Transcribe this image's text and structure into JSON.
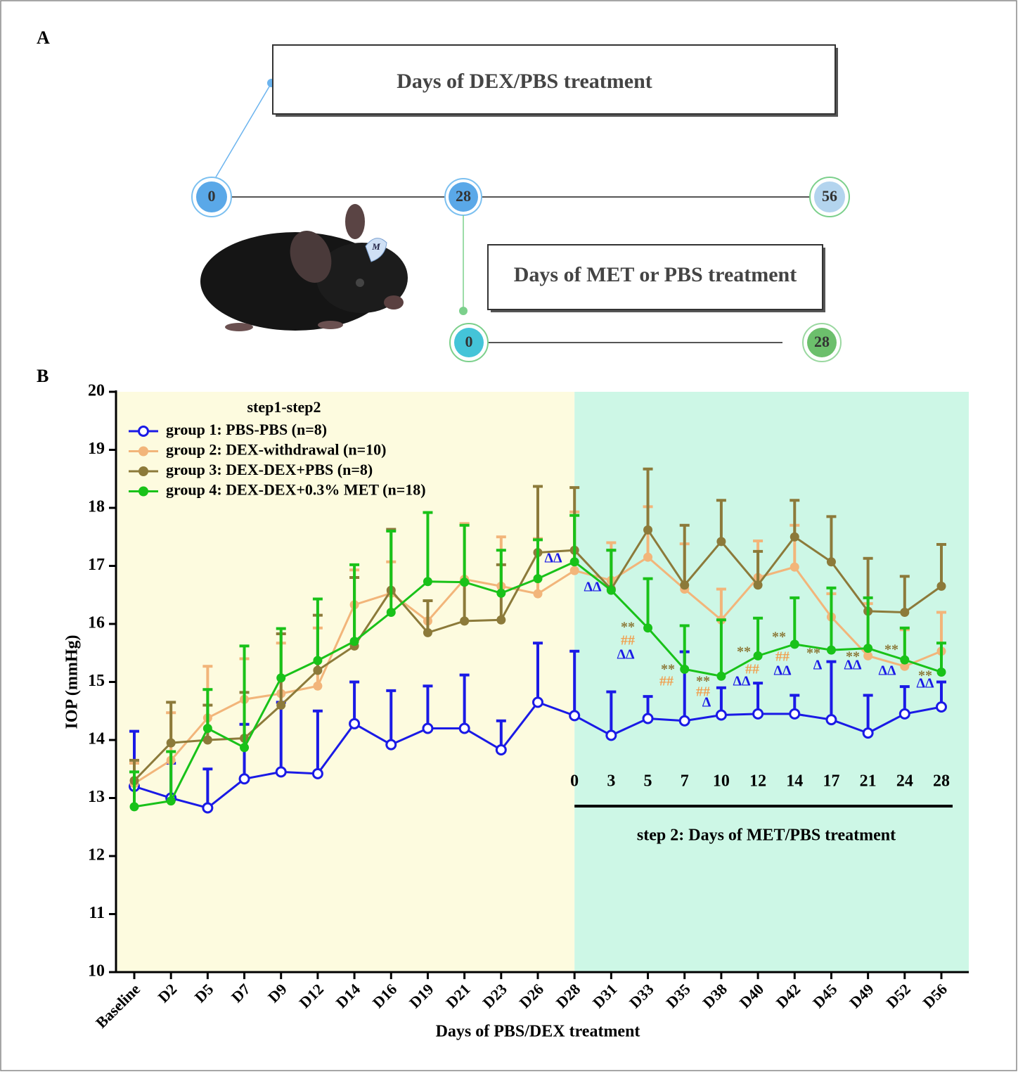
{
  "panel_a": {
    "label": "A",
    "box_1": "Days of DEX/PBS treatment",
    "box_2": "Days of MET or PBS treatment",
    "timeline_1": [
      0,
      28,
      56
    ],
    "timeline_2": [
      0,
      28
    ],
    "mouse_tag": "M"
  },
  "chart_data": {
    "type": "line",
    "panel_label": "B",
    "x_label": "Days of PBS/DEX treatment",
    "y_label": "IOP (mmHg)",
    "legend_title": "step1-step2",
    "categories": [
      "Baseline",
      "D2",
      "D5",
      "D7",
      "D9",
      "D12",
      "D14",
      "D16",
      "D19",
      "D21",
      "D23",
      "D26",
      "D28",
      "D31",
      "D33",
      "D35",
      "D38",
      "D40",
      "D42",
      "D45",
      "D49",
      "D52",
      "D56"
    ],
    "ylim": [
      10,
      20
    ],
    "yticks": [
      10,
      11,
      12,
      13,
      14,
      15,
      16,
      17,
      18,
      19,
      20
    ],
    "phase_colors": [
      "#fdfbdf",
      "#cdf7e6"
    ],
    "series": [
      {
        "name": "group 1: PBS-PBS (n=8)",
        "color": "#1a1ae6",
        "marker": "open",
        "values": [
          13.2,
          13.0,
          12.83,
          13.33,
          13.45,
          13.42,
          14.28,
          13.92,
          14.2,
          14.2,
          13.83,
          14.65,
          14.42,
          14.08,
          14.37,
          14.33,
          14.43,
          14.45,
          14.45,
          14.35,
          14.12,
          14.45,
          14.57
        ],
        "errors": [
          0.95,
          0.6,
          0.67,
          0.94,
          1.2,
          1.08,
          0.72,
          0.93,
          0.73,
          0.92,
          0.5,
          1.02,
          1.11,
          0.75,
          0.38,
          1.19,
          0.47,
          0.53,
          0.32,
          1.0,
          0.65,
          0.47,
          0.43
        ]
      },
      {
        "name": "group 2: DEX-withdrawal (n=10)",
        "color": "#f2b57a",
        "marker": "filled",
        "values": [
          13.25,
          13.65,
          14.38,
          14.7,
          14.8,
          14.93,
          16.33,
          16.53,
          16.05,
          16.77,
          16.65,
          16.52,
          16.92,
          16.75,
          17.15,
          16.6,
          16.07,
          16.8,
          16.98,
          16.12,
          15.45,
          15.27,
          15.53
        ],
        "errors": [
          0.35,
          0.82,
          0.89,
          0.7,
          0.87,
          1.0,
          0.6,
          0.54,
          0.35,
          0.96,
          0.85,
          0.95,
          1.01,
          0.65,
          0.87,
          0.78,
          0.53,
          0.63,
          0.72,
          0.4,
          0.9,
          0.63,
          0.67
        ]
      },
      {
        "name": "group 3: DEX-DEX+PBS (n=8)",
        "color": "#8c7a3a",
        "marker": "filled",
        "values": [
          13.3,
          13.95,
          14.0,
          14.03,
          14.6,
          15.2,
          15.62,
          16.58,
          15.85,
          16.05,
          16.07,
          17.23,
          17.27,
          16.6,
          17.62,
          16.67,
          17.42,
          16.67,
          17.5,
          17.07,
          16.22,
          16.2,
          16.65
        ],
        "errors": [
          0.35,
          0.7,
          0.6,
          0.79,
          1.23,
          0.95,
          1.18,
          1.05,
          0.55,
          0.67,
          0.95,
          1.14,
          1.08,
          0.67,
          1.05,
          1.03,
          0.71,
          0.58,
          0.63,
          0.78,
          0.91,
          0.62,
          0.72
        ]
      },
      {
        "name": "group 4: DEX-DEX+0.3% MET (n=18)",
        "color": "#19c219",
        "marker": "filled",
        "values": [
          12.85,
          12.95,
          14.2,
          13.87,
          15.07,
          15.37,
          15.7,
          16.2,
          16.73,
          16.72,
          16.53,
          16.78,
          17.07,
          16.58,
          15.93,
          15.22,
          15.1,
          15.45,
          15.65,
          15.55,
          15.58,
          15.38,
          15.17
        ],
        "errors": [
          0.6,
          0.85,
          0.67,
          1.75,
          0.85,
          1.06,
          1.32,
          1.4,
          1.19,
          0.98,
          0.74,
          0.67,
          0.8,
          0.69,
          0.85,
          0.75,
          0.97,
          0.65,
          0.8,
          1.07,
          0.87,
          0.55,
          0.5
        ]
      }
    ],
    "step2_days": [
      0,
      3,
      5,
      7,
      10,
      12,
      14,
      17,
      21,
      24,
      28
    ],
    "step2_label": "step 2: Days of MET/PBS treatment",
    "annotations": [
      {
        "text": "ΔΔ",
        "color": "#1a1ae6"
      },
      {
        "text": "ΔΔ",
        "color": "#1a1ae6"
      },
      {
        "text": "**",
        "color": "#8c7a3a"
      },
      {
        "text": "##",
        "color": "#f0a050"
      },
      {
        "text": "ΔΔ",
        "color": "#1a1ae6"
      },
      {
        "text": "**",
        "color": "#8c7a3a"
      },
      {
        "text": "##",
        "color": "#f0a050"
      },
      {
        "text": "**",
        "color": "#8c7a3a"
      },
      {
        "text": "##",
        "color": "#f0a050"
      },
      {
        "text": "Δ",
        "color": "#1a1ae6"
      },
      {
        "text": "**",
        "color": "#8c7a3a"
      },
      {
        "text": "##",
        "color": "#f0a050"
      },
      {
        "text": "ΔΔ",
        "color": "#1a1ae6"
      },
      {
        "text": "**",
        "color": "#8c7a3a"
      },
      {
        "text": "##",
        "color": "#f0a050"
      },
      {
        "text": "ΔΔ",
        "color": "#1a1ae6"
      },
      {
        "text": "**",
        "color": "#8c7a3a"
      },
      {
        "text": "Δ",
        "color": "#1a1ae6"
      },
      {
        "text": "**",
        "color": "#8c7a3a"
      },
      {
        "text": "ΔΔ",
        "color": "#1a1ae6"
      },
      {
        "text": "**",
        "color": "#8c7a3a"
      },
      {
        "text": "ΔΔ",
        "color": "#1a1ae6"
      },
      {
        "text": "**",
        "color": "#8c7a3a"
      },
      {
        "text": "ΔΔ",
        "color": "#1a1ae6"
      }
    ]
  }
}
